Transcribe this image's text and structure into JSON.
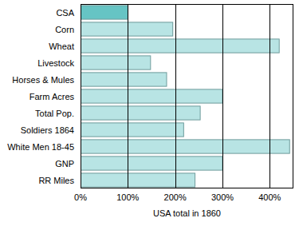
{
  "chart_data": {
    "type": "bar",
    "orientation": "horizontal",
    "x_label": "USA total in 1860",
    "categories": [
      "CSA",
      "Corn",
      "Wheat",
      "Livestock",
      "Horses & Mules",
      "Farm Acres",
      "Total Pop.",
      "Soldiers 1864",
      "White Men 18-45",
      "GNP",
      "RR Miles"
    ],
    "values": [
      100,
      195,
      420,
      148,
      182,
      300,
      253,
      218,
      442,
      300,
      242
    ],
    "colors": [
      "#66c4c4",
      "#b8e4e4",
      "#b8e4e4",
      "#b8e4e4",
      "#b8e4e4",
      "#b8e4e4",
      "#b8e4e4",
      "#b8e4e4",
      "#b8e4e4",
      "#b8e4e4",
      "#b8e4e4"
    ],
    "xlim": [
      0,
      450
    ],
    "xticks": [
      {
        "value": 0,
        "label": "0%"
      },
      {
        "value": 100,
        "label": "100%"
      },
      {
        "value": 200,
        "label": "200%"
      },
      {
        "value": 300,
        "label": "300%"
      },
      {
        "value": 400,
        "label": "400%"
      }
    ],
    "grid": true
  }
}
